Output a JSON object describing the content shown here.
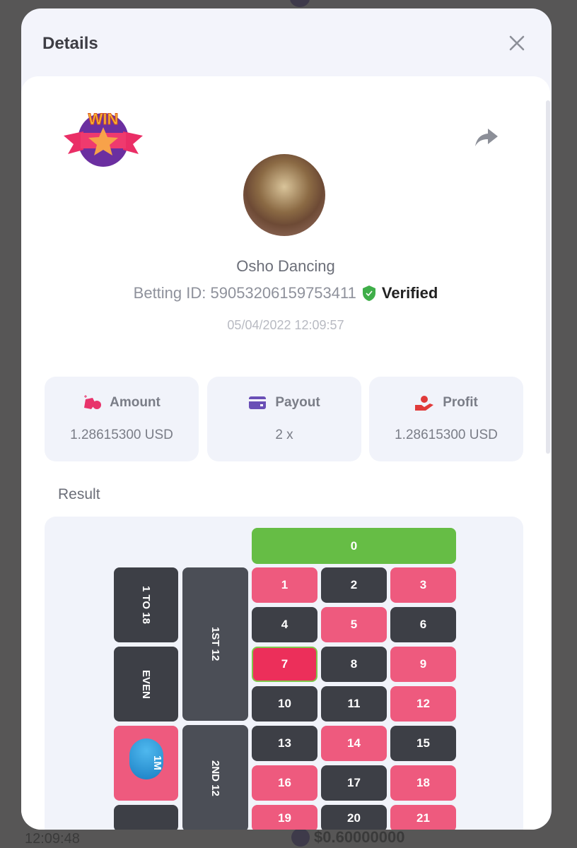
{
  "background": {
    "time": "12:09:48",
    "amount": "$0.60000000"
  },
  "modal": {
    "title": "Details",
    "close_icon": "close-icon"
  },
  "badge": {
    "text": "WIN",
    "icon": "win-star-badge"
  },
  "player": {
    "name": "Osho Dancing",
    "betting_id_label": "Betting ID: 59053206159753411",
    "verified": "Verified",
    "date": "05/04/2022 12:09:57"
  },
  "stats": [
    {
      "label": "Amount",
      "value": "1.28615300 USD",
      "icon": "money-bag-icon",
      "color": "#e8336b"
    },
    {
      "label": "Payout",
      "value": "2 x",
      "icon": "wallet-icon",
      "color": "#6a4fb6"
    },
    {
      "label": "Profit",
      "value": "1.28615300 USD",
      "icon": "hand-coin-icon",
      "color": "#e03a3a"
    }
  ],
  "result_label": "Result",
  "colors": {
    "red": "#ee5a7e",
    "black": "#3d3f46",
    "dozen": "#4b4e56",
    "green": "#66bd45",
    "winning": "#ec2f5a"
  },
  "board": {
    "zero": "0",
    "winning_number": 7,
    "numbers": [
      {
        "n": "1",
        "c": "red"
      },
      {
        "n": "2",
        "c": "black"
      },
      {
        "n": "3",
        "c": "red"
      },
      {
        "n": "4",
        "c": "black"
      },
      {
        "n": "5",
        "c": "red"
      },
      {
        "n": "6",
        "c": "black"
      },
      {
        "n": "7",
        "c": "red"
      },
      {
        "n": "8",
        "c": "black"
      },
      {
        "n": "9",
        "c": "red"
      },
      {
        "n": "10",
        "c": "black"
      },
      {
        "n": "11",
        "c": "black"
      },
      {
        "n": "12",
        "c": "red"
      },
      {
        "n": "13",
        "c": "black"
      },
      {
        "n": "14",
        "c": "red"
      },
      {
        "n": "15",
        "c": "black"
      },
      {
        "n": "16",
        "c": "red"
      },
      {
        "n": "17",
        "c": "black"
      },
      {
        "n": "18",
        "c": "red"
      },
      {
        "n": "19",
        "c": "red"
      },
      {
        "n": "20",
        "c": "black"
      },
      {
        "n": "21",
        "c": "red"
      }
    ],
    "outside": [
      {
        "label": "1 TO 18",
        "c": "black"
      },
      {
        "label": "EVEN",
        "c": "black"
      },
      {
        "label": "",
        "c": "red",
        "chip": "1M"
      },
      {
        "label": "",
        "c": "black"
      }
    ],
    "dozens": [
      "1ST 12",
      "2ND 12"
    ]
  }
}
